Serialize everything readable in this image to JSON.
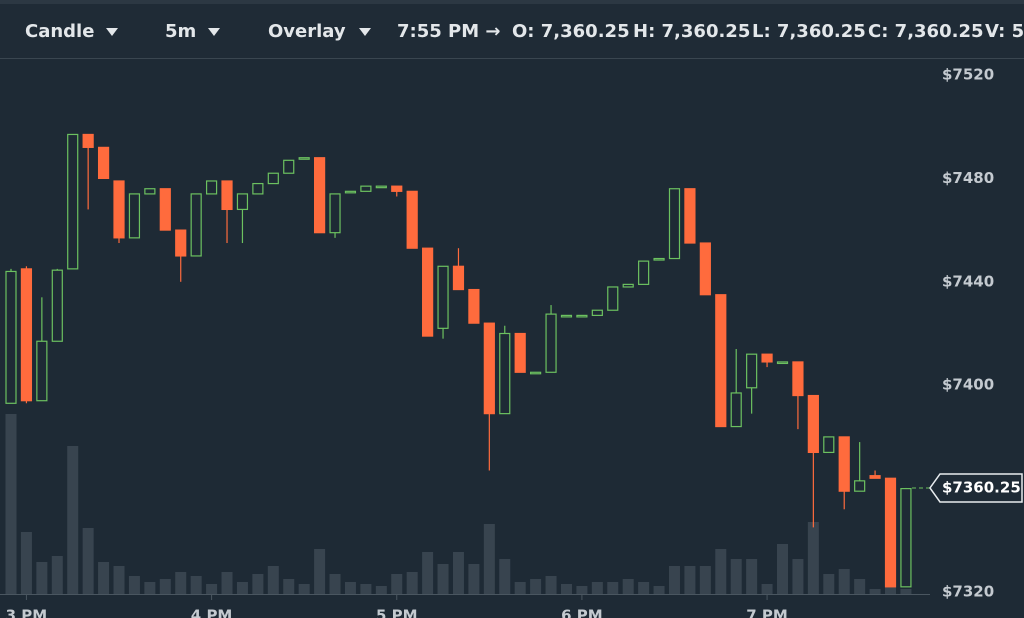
{
  "toolbar": {
    "chart_type": "Candle",
    "interval": "5m",
    "overlay": "Overlay",
    "time": "7:55 PM →",
    "ohlcv": [
      "O: 7,360.25",
      "H: 7,360.25",
      "L: 7,360.25",
      "C: 7,360.25",
      "V: 5"
    ]
  },
  "chart_data": {
    "type": "candlestick",
    "categories": [
      null,
      "3 PM",
      null,
      null,
      null,
      null,
      null,
      null,
      null,
      null,
      null,
      null,
      null,
      "4 PM",
      null,
      null,
      null,
      null,
      null,
      null,
      null,
      null,
      null,
      null,
      null,
      "5 PM",
      null,
      null,
      null,
      null,
      null,
      null,
      null,
      null,
      null,
      null,
      null,
      "6 PM",
      null,
      null,
      null,
      null,
      null,
      null,
      null,
      null,
      null,
      null,
      null,
      "7 PM",
      null,
      null,
      null,
      null,
      null,
      null,
      null,
      null,
      null
    ],
    "open": [
      7393,
      7445,
      7394,
      7417,
      7445,
      7497,
      7492,
      7479,
      7457,
      7474,
      7476,
      7460,
      7450,
      7474,
      7479,
      7468,
      7474,
      7478,
      7482,
      7488,
      7488,
      7459,
      7475,
      7475,
      7477,
      7477,
      7475,
      7453,
      7422,
      7446,
      7437,
      7424,
      7389,
      7420,
      7405,
      7405,
      7427,
      7427,
      7427,
      7429,
      7438,
      7439,
      7449,
      7449,
      7476,
      7455,
      7435,
      7384,
      7399,
      7412,
      7409,
      7409,
      7396,
      7374,
      7380,
      7359,
      7365,
      7364,
      7322
    ],
    "high": [
      7445,
      7446,
      7434,
      7445,
      7497,
      7497,
      7492,
      7479,
      7474,
      7476,
      7476,
      7460,
      7474,
      7479,
      7479,
      7474,
      7478,
      7482,
      7487,
      7488,
      7488,
      7474,
      7475,
      7477,
      7477,
      7477,
      7475,
      7453,
      7446,
      7453,
      7437,
      7424,
      7423,
      7420,
      7405,
      7431,
      7427,
      7427,
      7429,
      7438,
      7439,
      7448,
      7449,
      7476,
      7476,
      7455,
      7435,
      7414,
      7412,
      7412,
      7409,
      7409,
      7396,
      7380,
      7380,
      7378,
      7367,
      7364,
      7360.25
    ],
    "low": [
      7393,
      7393,
      7394,
      7417,
      7445,
      7468,
      7480,
      7455,
      7457,
      7474,
      7460,
      7440,
      7450,
      7474,
      7455,
      7455,
      7474,
      7478,
      7482,
      7488,
      7459,
      7457,
      7475,
      7475,
      7477,
      7473,
      7453,
      7419,
      7418,
      7437,
      7424,
      7367,
      7389,
      7405,
      7405,
      7405,
      7427,
      7427,
      7427,
      7429,
      7438,
      7439,
      7449,
      7449,
      7455,
      7435,
      7384,
      7384,
      7389,
      7407,
      7409,
      7383,
      7345,
      7374,
      7352,
      7359,
      7364,
      7322,
      7322
    ],
    "close": [
      7444,
      7394,
      7417,
      7444.5,
      7497,
      7492,
      7480,
      7457,
      7474,
      7476,
      7460,
      7450,
      7474,
      7479,
      7468,
      7474,
      7478,
      7482,
      7487,
      7488,
      7459,
      7474,
      7475,
      7477,
      7477,
      7475,
      7453,
      7419,
      7446,
      7437,
      7424,
      7389,
      7420,
      7405,
      7405,
      7427.5,
      7427,
      7427,
      7429,
      7438,
      7439,
      7448,
      7449,
      7476,
      7455,
      7435,
      7384,
      7397,
      7412,
      7409,
      7409,
      7396,
      7374,
      7380,
      7359,
      7363,
      7364,
      7322,
      7360
    ],
    "volume": [
      180,
      62,
      32,
      38,
      148,
      66,
      32,
      28,
      18,
      12,
      15,
      22,
      18,
      10,
      22,
      12,
      20,
      28,
      15,
      10,
      45,
      20,
      12,
      10,
      8,
      20,
      22,
      42,
      30,
      42,
      30,
      70,
      35,
      12,
      15,
      18,
      10,
      8,
      12,
      12,
      15,
      12,
      8,
      28,
      28,
      28,
      45,
      35,
      35,
      10,
      50,
      35,
      72,
      20,
      25,
      15,
      5,
      10,
      5
    ],
    "up_color": "#6cc160",
    "down_color": "#ff6b3d",
    "volume_color": "#38444f",
    "ylim": [
      7320,
      7520
    ],
    "yticks": [
      {
        "value": 7520,
        "label": "$7520"
      },
      {
        "value": 7480,
        "label": "$7480"
      },
      {
        "value": 7440,
        "label": "$7440"
      },
      {
        "value": 7400,
        "label": "$7400"
      },
      {
        "value": 7360,
        "label": "$7360"
      },
      {
        "value": 7320,
        "label": "$7320"
      }
    ],
    "last_price": {
      "value": 7360.25,
      "label": "$7360.25"
    }
  }
}
